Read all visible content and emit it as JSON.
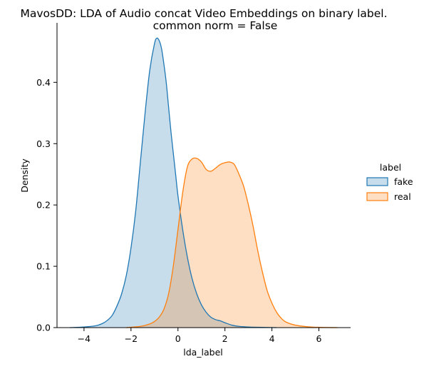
{
  "chart_data": {
    "type": "area",
    "title": "MavosDD: LDA of Audio concat Video Embeddings on binary label.",
    "subtitle": "common norm = False",
    "xlabel": "lda_label",
    "ylabel": "Density",
    "xlim": [
      -5.15,
      7.35
    ],
    "ylim": [
      0,
      0.497
    ],
    "xticks": [
      -4,
      -2,
      0,
      2,
      4,
      6
    ],
    "yticks": [
      0.0,
      0.1,
      0.2,
      0.3,
      0.4
    ],
    "grid": false,
    "legend": {
      "title": "label",
      "placement": "right"
    },
    "series": [
      {
        "name": "fake",
        "color": "#1f77b4",
        "x": [
          -4.6,
          -4.0,
          -3.5,
          -3.2,
          -3.0,
          -2.8,
          -2.6,
          -2.4,
          -2.2,
          -2.0,
          -1.8,
          -1.6,
          -1.4,
          -1.2,
          -1.0,
          -0.9,
          -0.8,
          -0.7,
          -0.6,
          -0.5,
          -0.4,
          -0.3,
          -0.2,
          -0.1,
          0.0,
          0.2,
          0.4,
          0.6,
          0.8,
          1.0,
          1.2,
          1.4,
          1.6,
          1.8,
          2.0,
          2.3,
          2.6,
          3.0,
          3.4,
          3.8,
          4.2
        ],
        "y": [
          0.0,
          0.001,
          0.003,
          0.007,
          0.012,
          0.02,
          0.035,
          0.055,
          0.085,
          0.13,
          0.19,
          0.27,
          0.35,
          0.42,
          0.463,
          0.472,
          0.468,
          0.455,
          0.43,
          0.4,
          0.36,
          0.32,
          0.285,
          0.25,
          0.215,
          0.16,
          0.115,
          0.08,
          0.055,
          0.037,
          0.025,
          0.017,
          0.013,
          0.011,
          0.008,
          0.004,
          0.002,
          0.001,
          0.0005,
          0.0002,
          0.0
        ]
      },
      {
        "name": "real",
        "color": "#ff7f0e",
        "x": [
          -2.2,
          -1.6,
          -1.2,
          -1.0,
          -0.8,
          -0.6,
          -0.4,
          -0.2,
          0.0,
          0.2,
          0.4,
          0.6,
          0.8,
          1.0,
          1.2,
          1.4,
          1.6,
          1.8,
          2.0,
          2.2,
          2.4,
          2.6,
          2.8,
          3.0,
          3.2,
          3.4,
          3.6,
          3.8,
          4.0,
          4.2,
          4.4,
          4.6,
          5.0,
          5.5,
          6.0,
          6.8
        ],
        "y": [
          0.0,
          0.002,
          0.006,
          0.01,
          0.017,
          0.03,
          0.055,
          0.1,
          0.16,
          0.22,
          0.262,
          0.275,
          0.276,
          0.27,
          0.258,
          0.255,
          0.26,
          0.266,
          0.269,
          0.27,
          0.266,
          0.25,
          0.23,
          0.2,
          0.165,
          0.125,
          0.09,
          0.06,
          0.04,
          0.025,
          0.015,
          0.009,
          0.004,
          0.0015,
          0.0005,
          0.0
        ]
      }
    ]
  }
}
